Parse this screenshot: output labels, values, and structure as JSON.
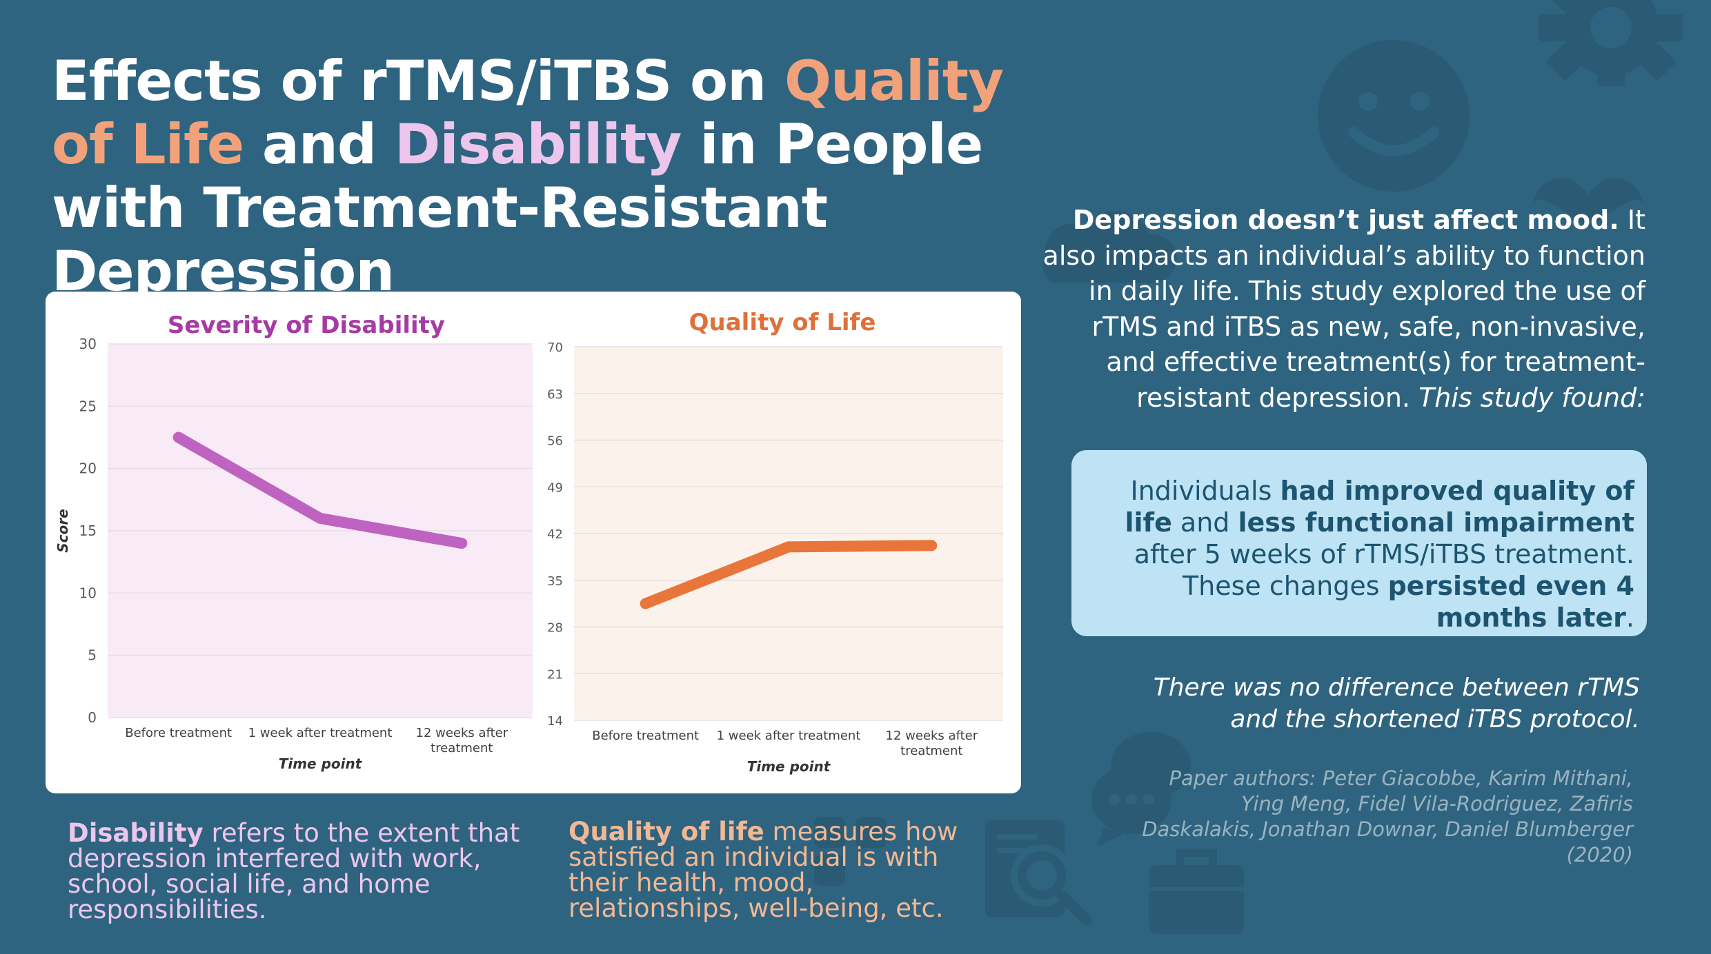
{
  "title": {
    "part1": "Effects of rTMS/iTBS on ",
    "quality": "Quality of Life",
    "part2": " and ",
    "disability": "Disability",
    "part3": " in People with Treatment-Resistant Depression"
  },
  "colors": {
    "background": "#2f6480",
    "orange_accent": "#f2a27a",
    "pink_accent": "#ecc6ec",
    "disability_line": "#be63bf",
    "qol_line": "#e8763a",
    "finding_box": "#bde3f4"
  },
  "intro": {
    "bold": "Depression doesn’t just affect mood.",
    "body": " It also impacts an individual’s ability to function in daily life. This study explored the use of rTMS and iTBS as new, safe, non-invasive, and effective treatment(s) for treatment-resistant depression. ",
    "italic": "This study found:"
  },
  "finding": {
    "t1": "Individuals ",
    "b1": "had improved quality of life",
    "t2": " and ",
    "b2": "less functional impairment",
    "t3": " after 5 weeks of rTMS/iTBS treatment. These changes ",
    "b3": "persisted even 4 months later",
    "t4": "."
  },
  "no_difference": "There was no difference between rTMS and the shortened iTBS protocol.",
  "authors": "Paper authors: Peter Giacobbe, Karim Mithani, Ying Meng, Fidel Vila-Rodriguez, Zafiris Daskalakis, Jonathan Downar, Daniel Blumberger (2020)",
  "definitions": {
    "disability_term": "Disability",
    "disability_text": " refers to the extent that depression interfered with work, school, social life, and home responsibilities.",
    "qol_term": "Quality of life",
    "qol_text": " measures how satisfied an individual is with their health, mood, relationships, well-being, etc."
  },
  "icons": [
    "gear-icon",
    "smiley-icon",
    "heart-icon",
    "chat-bubbles-icon",
    "document-search-icon",
    "briefcase-icon"
  ],
  "chart_data": [
    {
      "type": "line",
      "title": "Severity of Disability",
      "ylabel": "Score",
      "xlabel": "Time point",
      "categories": [
        "Before treatment",
        "1 week after treatment",
        "12 weeks after treatment"
      ],
      "values": [
        22.5,
        16,
        14
      ],
      "ylim": [
        0,
        30
      ],
      "yticks": [
        0,
        5,
        10,
        15,
        20,
        25,
        30
      ],
      "color": "#be63bf",
      "title_color": "#a73aa5",
      "plot_bg": "#f8eaf7"
    },
    {
      "type": "line",
      "title": "Quality of Life",
      "ylabel": "",
      "xlabel": "Time point",
      "categories": [
        "Before treatment",
        "1 week after treatment",
        "12 weeks after treatment"
      ],
      "values": [
        31.5,
        40,
        40.2
      ],
      "ylim": [
        14,
        70
      ],
      "yticks": [
        14,
        21,
        28,
        35,
        42,
        49,
        56,
        63,
        70
      ],
      "color": "#e8763a",
      "title_color": "#e0703a",
      "plot_bg": "#fcf2ec"
    }
  ]
}
